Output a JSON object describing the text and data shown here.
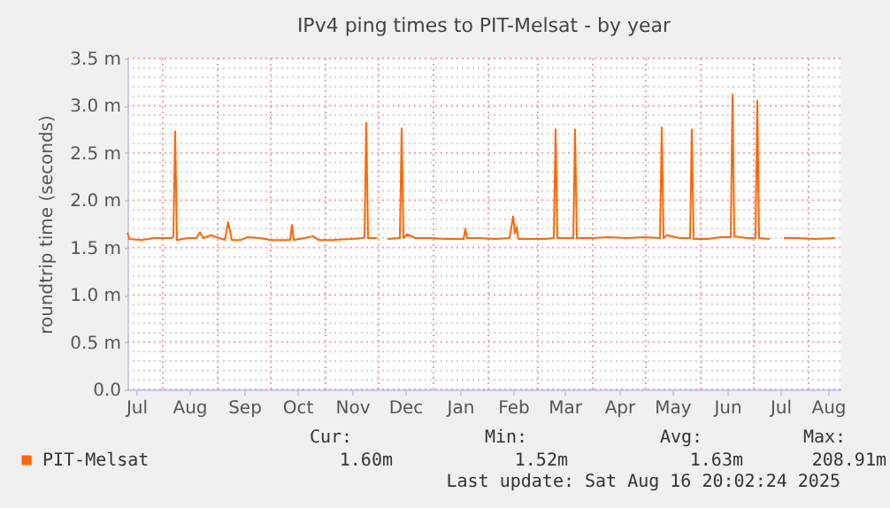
{
  "chart_data": {
    "type": "line",
    "title": "IPv4 ping times to PIT-Melsat - by year",
    "ylabel": "roundtrip time (seconds)",
    "xlim": [
      "2024-07-12",
      "2025-08-19"
    ],
    "xticks": [
      {
        "value": "2024-07-17",
        "label": "Jul"
      },
      {
        "value": "2024-08-01",
        "label": null
      },
      {
        "value": "2024-08-16",
        "label": "Aug"
      },
      {
        "value": "2024-09-01",
        "label": null
      },
      {
        "value": "2024-09-16",
        "label": "Sep"
      },
      {
        "value": "2024-10-01",
        "label": null
      },
      {
        "value": "2024-10-16",
        "label": "Oct"
      },
      {
        "value": "2024-11-01",
        "label": null
      },
      {
        "value": "2024-11-16",
        "label": "Nov"
      },
      {
        "value": "2024-12-01",
        "label": null
      },
      {
        "value": "2024-12-16",
        "label": "Dec"
      },
      {
        "value": "2025-01-01",
        "label": null
      },
      {
        "value": "2025-01-16",
        "label": "Jan"
      },
      {
        "value": "2025-02-01",
        "label": null
      },
      {
        "value": "2025-02-15",
        "label": "Feb"
      },
      {
        "value": "2025-03-01",
        "label": null
      },
      {
        "value": "2025-03-16",
        "label": "Mar"
      },
      {
        "value": "2025-04-01",
        "label": null
      },
      {
        "value": "2025-04-16",
        "label": "Apr"
      },
      {
        "value": "2025-05-01",
        "label": null
      },
      {
        "value": "2025-05-16",
        "label": "May"
      },
      {
        "value": "2025-06-01",
        "label": null
      },
      {
        "value": "2025-06-16",
        "label": "Jun"
      },
      {
        "value": "2025-07-01",
        "label": null
      },
      {
        "value": "2025-07-16",
        "label": "Jul"
      },
      {
        "value": "2025-08-01",
        "label": null
      },
      {
        "value": "2025-08-12",
        "label": "Aug"
      }
    ],
    "ylim": [
      0,
      3.5
    ],
    "yticks": [
      {
        "value": 0,
        "label": "0.0"
      },
      {
        "value": 0.1,
        "label": null
      },
      {
        "value": 0.2,
        "label": null
      },
      {
        "value": 0.3,
        "label": null
      },
      {
        "value": 0.4,
        "label": null
      },
      {
        "value": 0.5,
        "label": "0.5 m"
      },
      {
        "value": 0.6,
        "label": null
      },
      {
        "value": 0.7,
        "label": null
      },
      {
        "value": 0.8,
        "label": null
      },
      {
        "value": 0.9,
        "label": null
      },
      {
        "value": 1,
        "label": "1.0 m"
      },
      {
        "value": 1.1,
        "label": null
      },
      {
        "value": 1.2,
        "label": null
      },
      {
        "value": 1.3,
        "label": null
      },
      {
        "value": 1.4,
        "label": null
      },
      {
        "value": 1.5,
        "label": "1.5 m"
      },
      {
        "value": 1.6,
        "label": null
      },
      {
        "value": 1.7,
        "label": null
      },
      {
        "value": 1.8,
        "label": null
      },
      {
        "value": 1.9,
        "label": null
      },
      {
        "value": 2,
        "label": "2.0 m"
      },
      {
        "value": 2.1,
        "label": null
      },
      {
        "value": 2.2,
        "label": null
      },
      {
        "value": 2.3,
        "label": null
      },
      {
        "value": 2.4,
        "label": null
      },
      {
        "value": 2.5,
        "label": "2.5 m"
      },
      {
        "value": 2.6,
        "label": null
      },
      {
        "value": 2.7,
        "label": null
      },
      {
        "value": 2.8,
        "label": null
      },
      {
        "value": 2.9,
        "label": null
      },
      {
        "value": 3,
        "label": "3.0 m"
      },
      {
        "value": 3.1,
        "label": null
      },
      {
        "value": 3.2,
        "label": null
      },
      {
        "value": 3.3,
        "label": null
      },
      {
        "value": 3.4,
        "label": null
      },
      {
        "value": 3.5,
        "label": "3.5 m"
      }
    ],
    "grid": true,
    "legend": "bottom left",
    "marker": "none",
    "line_style": "solid",
    "annotations": [
      "Cur:",
      "Min:",
      "Avg:",
      "Max:",
      "1.60m",
      "1.52m",
      "1.63m",
      "208.91m",
      "Last update: Sat Aug 16 20:02:24 2025"
    ],
    "series": [
      {
        "name": "PIT-Melsat",
        "color": "#ff6600",
        "x": [
          "2024-07-12",
          "2024-07-13",
          "2024-07-20",
          "2024-07-27",
          "2024-08-06",
          "2024-08-07",
          "2024-08-08",
          "2024-08-09",
          "2024-08-15",
          "2024-08-20",
          "2024-08-22",
          "2024-08-24",
          "2024-08-28",
          "2024-09-02",
          "2024-09-05",
          "2024-09-07",
          "2024-09-09",
          "2024-09-14",
          "2024-09-18",
          "2024-09-25",
          "2024-10-01",
          "2024-10-07",
          "2024-10-12",
          "2024-10-13",
          "2024-10-14",
          "2024-10-20",
          "2024-10-25",
          "2024-10-28",
          "2024-11-05",
          "2024-11-15",
          "2024-11-22",
          "2024-11-23",
          "2024-11-24",
          "2024-11-25",
          "2024-11-30",
          "2024-12-03",
          "2024-12-06",
          "2024-12-12",
          "2024-12-13",
          "2024-12-14",
          "2024-12-15",
          "2024-12-17",
          "2024-12-22",
          "2024-12-30",
          "2025-01-08",
          "2025-01-18",
          "2025-01-19",
          "2025-01-20",
          "2025-01-27",
          "2025-02-05",
          "2025-02-13",
          "2025-02-15",
          "2025-02-16",
          "2025-02-17",
          "2025-02-18",
          "2025-02-25",
          "2025-03-05",
          "2025-03-10",
          "2025-03-11",
          "2025-03-12",
          "2025-03-21",
          "2025-03-22",
          "2025-03-23",
          "2025-04-01",
          "2025-04-10",
          "2025-04-20",
          "2025-04-30",
          "2025-05-09",
          "2025-05-10",
          "2025-05-11",
          "2025-05-13",
          "2025-05-20",
          "2025-05-26",
          "2025-05-27",
          "2025-05-28",
          "2025-06-05",
          "2025-06-12",
          "2025-06-18",
          "2025-06-19",
          "2025-06-20",
          "2025-06-27",
          "2025-07-02",
          "2025-07-03",
          "2025-07-04",
          "2025-07-10",
          "2025-07-14",
          "2025-07-18",
          "2025-07-25",
          "2025-08-05",
          "2025-08-16"
        ],
        "values": [
          1.66,
          1.59,
          1.58,
          1.6,
          1.6,
          1.61,
          2.73,
          1.58,
          1.6,
          1.6,
          1.66,
          1.6,
          1.63,
          1.6,
          1.58,
          1.77,
          1.58,
          1.58,
          1.61,
          1.6,
          1.58,
          1.58,
          1.58,
          1.74,
          1.58,
          1.6,
          1.62,
          1.58,
          1.58,
          1.59,
          1.6,
          1.61,
          2.82,
          1.6,
          1.6,
          null,
          1.59,
          1.6,
          1.6,
          2.76,
          1.6,
          1.64,
          1.6,
          1.6,
          1.59,
          1.59,
          1.7,
          1.6,
          1.6,
          1.59,
          1.6,
          1.83,
          1.65,
          1.72,
          1.59,
          1.59,
          1.59,
          1.6,
          2.75,
          1.6,
          1.6,
          2.75,
          1.6,
          1.6,
          1.61,
          1.6,
          1.61,
          1.6,
          2.77,
          1.6,
          1.63,
          1.6,
          1.6,
          2.75,
          1.59,
          1.59,
          1.61,
          1.61,
          3.12,
          1.62,
          1.6,
          1.6,
          3.05,
          1.6,
          1.59,
          null,
          1.6,
          1.6,
          1.59,
          1.6
        ]
      }
    ]
  }
}
